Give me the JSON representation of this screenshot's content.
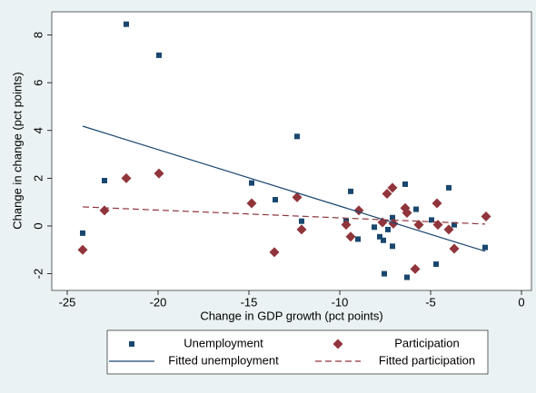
{
  "chart_data": {
    "type": "scatter",
    "x_label": "Change in GDP growth (pct points)",
    "y_label": "Change in change (pct points)",
    "xlim": [
      -25.85,
      0.55
    ],
    "ylim": [
      -2.7,
      8.97
    ],
    "xticks": [
      -25,
      -20,
      -15,
      -10,
      -5,
      0
    ],
    "yticks": [
      -2,
      0,
      2,
      4,
      6,
      8
    ],
    "series": [
      {
        "name": "Unemployment",
        "color": "#1a476f",
        "marker": "square",
        "x": [
          -24.15,
          -22.95,
          -21.75,
          -19.95,
          -14.85,
          -13.55,
          -12.35,
          -12.1,
          -9.65,
          -9.4,
          -9.0,
          -8.1,
          -7.8,
          -7.6,
          -7.55,
          -7.35,
          -7.1,
          -7.1,
          -6.4,
          -5.8,
          -6.3,
          -4.95,
          -4.7,
          -4.0,
          -3.7,
          -2.0
        ],
        "values": [
          -0.3,
          1.9,
          8.45,
          7.15,
          1.8,
          1.1,
          3.75,
          0.2,
          0.2,
          1.45,
          -0.55,
          -0.05,
          -0.45,
          -0.6,
          -2.0,
          -0.15,
          0.35,
          -0.85,
          1.75,
          0.7,
          -2.15,
          0.25,
          -1.6,
          1.6,
          0.05,
          -0.9
        ]
      },
      {
        "name": "Participation",
        "color": "#90353b",
        "marker": "diamond",
        "x": [
          -24.15,
          -22.95,
          -21.75,
          -19.95,
          -14.85,
          -13.6,
          -12.35,
          -12.1,
          -9.65,
          -9.4,
          -8.95,
          -7.65,
          -7.4,
          -7.1,
          -7.05,
          -6.4,
          -6.3,
          -5.85,
          -5.65,
          -4.65,
          -4.6,
          -4.0,
          -3.7,
          -1.95
        ],
        "values": [
          -1.0,
          0.65,
          2.0,
          2.2,
          0.95,
          -1.1,
          1.2,
          -0.15,
          0.05,
          -0.45,
          0.65,
          0.15,
          1.35,
          1.6,
          0.1,
          0.75,
          0.55,
          -1.8,
          0.05,
          0.95,
          0.05,
          -0.15,
          -0.95,
          0.4
        ]
      },
      {
        "name": "Fitted unemployment",
        "color": "#1a476f",
        "marker": "line",
        "x": [
          -24.15,
          -2.0
        ],
        "values": [
          4.18,
          -1.06
        ]
      },
      {
        "name": "Fitted participation",
        "color": "#90353b",
        "marker": "dashed-line",
        "x": [
          -24.15,
          -2.0
        ],
        "values": [
          0.8,
          0.08
        ]
      }
    ]
  }
}
